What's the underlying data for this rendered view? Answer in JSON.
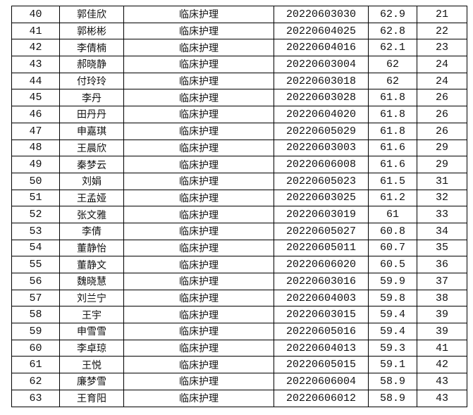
{
  "rows": [
    {
      "no": "40",
      "name": "郭佳欣",
      "major": "临床护理",
      "id": "20220603030",
      "score": "62.9",
      "rank": "21"
    },
    {
      "no": "41",
      "name": "郭彬彬",
      "major": "临床护理",
      "id": "20220604025",
      "score": "62.8",
      "rank": "22"
    },
    {
      "no": "42",
      "name": "李倩楠",
      "major": "临床护理",
      "id": "20220604016",
      "score": "62.1",
      "rank": "23"
    },
    {
      "no": "43",
      "name": "郝晓静",
      "major": "临床护理",
      "id": "20220603004",
      "score": "62",
      "rank": "24"
    },
    {
      "no": "44",
      "name": "付玲玲",
      "major": "临床护理",
      "id": "20220603018",
      "score": "62",
      "rank": "24"
    },
    {
      "no": "45",
      "name": "李丹",
      "major": "临床护理",
      "id": "20220603028",
      "score": "61.8",
      "rank": "26"
    },
    {
      "no": "46",
      "name": "田丹丹",
      "major": "临床护理",
      "id": "20220604020",
      "score": "61.8",
      "rank": "26"
    },
    {
      "no": "47",
      "name": "申嘉琪",
      "major": "临床护理",
      "id": "20220605029",
      "score": "61.8",
      "rank": "26"
    },
    {
      "no": "48",
      "name": "王晨欣",
      "major": "临床护理",
      "id": "20220603003",
      "score": "61.6",
      "rank": "29"
    },
    {
      "no": "49",
      "name": "秦梦云",
      "major": "临床护理",
      "id": "20220606008",
      "score": "61.6",
      "rank": "29"
    },
    {
      "no": "50",
      "name": "刘娟",
      "major": "临床护理",
      "id": "20220605023",
      "score": "61.5",
      "rank": "31"
    },
    {
      "no": "51",
      "name": "王孟娅",
      "major": "临床护理",
      "id": "20220603025",
      "score": "61.2",
      "rank": "32"
    },
    {
      "no": "52",
      "name": "张文雅",
      "major": "临床护理",
      "id": "20220603019",
      "score": "61",
      "rank": "33"
    },
    {
      "no": "53",
      "name": "李倩",
      "major": "临床护理",
      "id": "20220605027",
      "score": "60.8",
      "rank": "34"
    },
    {
      "no": "54",
      "name": "董静怡",
      "major": "临床护理",
      "id": "20220605011",
      "score": "60.7",
      "rank": "35"
    },
    {
      "no": "55",
      "name": "董静文",
      "major": "临床护理",
      "id": "20220606020",
      "score": "60.5",
      "rank": "36"
    },
    {
      "no": "56",
      "name": "魏晓慧",
      "major": "临床护理",
      "id": "20220603016",
      "score": "59.9",
      "rank": "37"
    },
    {
      "no": "57",
      "name": "刘兰宁",
      "major": "临床护理",
      "id": "20220604003",
      "score": "59.8",
      "rank": "38"
    },
    {
      "no": "58",
      "name": "王宇",
      "major": "临床护理",
      "id": "20220603015",
      "score": "59.4",
      "rank": "39"
    },
    {
      "no": "59",
      "name": "申雪雪",
      "major": "临床护理",
      "id": "20220605016",
      "score": "59.4",
      "rank": "39"
    },
    {
      "no": "60",
      "name": "李卓琼",
      "major": "临床护理",
      "id": "20220604013",
      "score": "59.3",
      "rank": "41"
    },
    {
      "no": "61",
      "name": "王悦",
      "major": "临床护理",
      "id": "20220605015",
      "score": "59.1",
      "rank": "42"
    },
    {
      "no": "62",
      "name": "廉梦雪",
      "major": "临床护理",
      "id": "20220606004",
      "score": "58.9",
      "rank": "43"
    },
    {
      "no": "63",
      "name": "王育阳",
      "major": "临床护理",
      "id": "20220606012",
      "score": "58.9",
      "rank": "43"
    }
  ]
}
